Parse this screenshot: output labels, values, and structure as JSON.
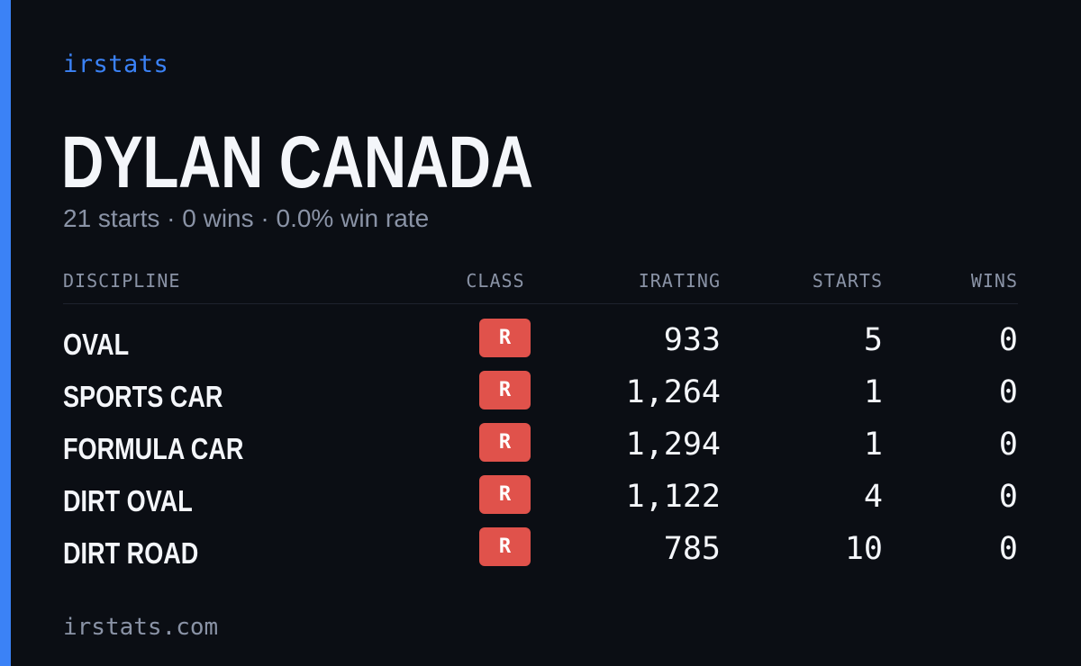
{
  "brand": "irstats",
  "player": {
    "name": "DYLAN CANADA",
    "summary": "21 starts · 0 wins · 0.0% win rate"
  },
  "colors": {
    "accent": "#3b82f6",
    "background": "#0b0e14",
    "class_badge": "#e0524b",
    "muted_text": "#8a93a6",
    "primary_text": "#f4f6fa"
  },
  "table": {
    "headers": {
      "discipline": "DISCIPLINE",
      "class": "CLASS",
      "irating": "IRATING",
      "starts": "STARTS",
      "wins": "WINS"
    },
    "rows": [
      {
        "discipline": "OVAL",
        "class": "R",
        "irating": "933",
        "starts": "5",
        "wins": "0"
      },
      {
        "discipline": "SPORTS CAR",
        "class": "R",
        "irating": "1,264",
        "starts": "1",
        "wins": "0"
      },
      {
        "discipline": "FORMULA CAR",
        "class": "R",
        "irating": "1,294",
        "starts": "1",
        "wins": "0"
      },
      {
        "discipline": "DIRT OVAL",
        "class": "R",
        "irating": "1,122",
        "starts": "4",
        "wins": "0"
      },
      {
        "discipline": "DIRT ROAD",
        "class": "R",
        "irating": "785",
        "starts": "10",
        "wins": "0"
      }
    ]
  },
  "footer": {
    "domain": "irstats.com"
  }
}
